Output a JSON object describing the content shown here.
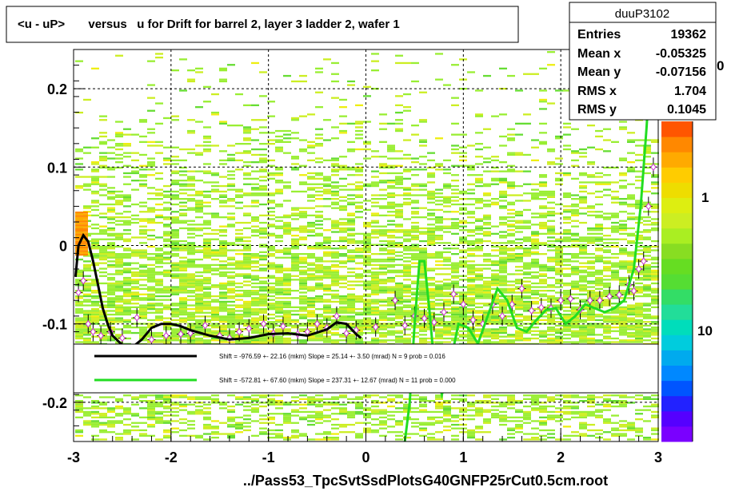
{
  "title": "<u - uP>       versus   u for Drift for barrel 2, layer 3 ladder 2, wafer 1",
  "footer": "../Pass53_TpcSvtSsdPlotsG40GNFP25rCut0.5cm.root",
  "stats": {
    "name": "duuP3102",
    "rows": [
      {
        "label": "Entries",
        "value": "19362"
      },
      {
        "label": "Mean x",
        "value": "-0.05325"
      },
      {
        "label": "Mean y",
        "value": "-0.07156"
      },
      {
        "label": "RMS x",
        "value": "1.704"
      },
      {
        "label": "RMS y",
        "value": "0.1045"
      }
    ]
  },
  "legend": {
    "entries": [
      {
        "color": "#000000",
        "text": "Shift =  -976.59 +- 22.16 (mkm) Slope =    25.14 +- 3.50 (mrad)  N = 9 prob = 0.016"
      },
      {
        "color": "#00dd00",
        "text": "Shift =  -572.81 +- 67.60 (mkm) Slope =   237.31 +- 12.67 (mrad)  N = 11 prob = 0.000"
      }
    ]
  },
  "colorbar": {
    "labels": [
      {
        "text": "10",
        "value": 10
      },
      {
        "text": "1",
        "value": 1
      },
      {
        "text": "0",
        "value": 0.1
      }
    ]
  },
  "chart_data": {
    "type": "heatmap",
    "xlim": [
      -3,
      3
    ],
    "ylim": [
      -0.25,
      0.25
    ],
    "xticks": [
      {
        "v": -3,
        "t": "-3"
      },
      {
        "v": -2,
        "t": "-2"
      },
      {
        "v": -1,
        "t": "-1"
      },
      {
        "v": 0,
        "t": "0"
      },
      {
        "v": 1,
        "t": "1"
      },
      {
        "v": 2,
        "t": "2"
      },
      {
        "v": 3,
        "t": "3"
      }
    ],
    "yticks": [
      {
        "v": -0.2,
        "t": "-0.2"
      },
      {
        "v": -0.1,
        "t": "-0.1"
      },
      {
        "v": 0,
        "t": "0"
      },
      {
        "v": 0.1,
        "t": "0.1"
      },
      {
        "v": 0.2,
        "t": "0.2"
      }
    ],
    "grid": true,
    "profile_points": [
      [
        -2.95,
        -0.06
      ],
      [
        -2.9,
        -0.045
      ],
      [
        -2.85,
        -0.1
      ],
      [
        -2.8,
        -0.11
      ],
      [
        -2.72,
        -0.115
      ],
      [
        -2.62,
        -0.11
      ],
      [
        -2.5,
        -0.118
      ],
      [
        -2.35,
        -0.092
      ],
      [
        -2.2,
        -0.12
      ],
      [
        -2.05,
        -0.115
      ],
      [
        -1.9,
        -0.113
      ],
      [
        -1.8,
        -0.112
      ],
      [
        -1.65,
        -0.102
      ],
      [
        -1.5,
        -0.115
      ],
      [
        -1.4,
        -0.118
      ],
      [
        -1.3,
        -0.11
      ],
      [
        -1.2,
        -0.106
      ],
      [
        -1.05,
        -0.1
      ],
      [
        -0.95,
        -0.112
      ],
      [
        -0.85,
        -0.103
      ],
      [
        -0.7,
        -0.113
      ],
      [
        -0.6,
        -0.11
      ],
      [
        -0.5,
        -0.1
      ],
      [
        -0.4,
        -0.105
      ],
      [
        -0.3,
        -0.09
      ],
      [
        -0.2,
        -0.112
      ],
      [
        -0.1,
        -0.108
      ],
      [
        0.1,
        -0.104
      ],
      [
        0.3,
        -0.07
      ],
      [
        0.4,
        -0.102
      ],
      [
        0.5,
        -0.09
      ],
      [
        0.6,
        -0.093
      ],
      [
        0.7,
        -0.098
      ],
      [
        0.8,
        -0.085
      ],
      [
        0.9,
        -0.062
      ],
      [
        1.0,
        -0.075
      ],
      [
        1.1,
        -0.095
      ],
      [
        1.2,
        -0.1
      ],
      [
        1.3,
        -0.075
      ],
      [
        1.4,
        -0.09
      ],
      [
        1.5,
        -0.075
      ],
      [
        1.6,
        -0.055
      ],
      [
        1.7,
        -0.083
      ],
      [
        1.8,
        -0.079
      ],
      [
        1.9,
        -0.08
      ],
      [
        2.0,
        -0.07
      ],
      [
        2.1,
        -0.068
      ],
      [
        2.2,
        -0.082
      ],
      [
        2.3,
        -0.07
      ],
      [
        2.4,
        -0.07
      ],
      [
        2.5,
        -0.065
      ],
      [
        2.6,
        -0.063
      ],
      [
        2.7,
        -0.05
      ],
      [
        2.75,
        -0.058
      ],
      [
        2.8,
        -0.03
      ],
      [
        2.85,
        -0.02
      ],
      [
        2.9,
        0.05
      ],
      [
        2.95,
        0.1
      ]
    ],
    "black_fit": [
      [
        -2.98,
        -0.04
      ],
      [
        -2.95,
        0.0
      ],
      [
        -2.9,
        0.013
      ],
      [
        -2.85,
        0.005
      ],
      [
        -2.8,
        -0.02
      ],
      [
        -2.75,
        -0.05
      ],
      [
        -2.7,
        -0.08
      ],
      [
        -2.65,
        -0.1
      ],
      [
        -2.6,
        -0.115
      ],
      [
        -2.5,
        -0.127
      ],
      [
        -2.4,
        -0.13
      ],
      [
        -2.3,
        -0.12
      ],
      [
        -2.2,
        -0.105
      ],
      [
        -2.1,
        -0.1
      ],
      [
        -2.0,
        -0.1
      ],
      [
        -1.9,
        -0.103
      ],
      [
        -1.8,
        -0.108
      ],
      [
        -1.6,
        -0.115
      ],
      [
        -1.4,
        -0.12
      ],
      [
        -1.2,
        -0.118
      ],
      [
        -1.0,
        -0.113
      ],
      [
        -0.8,
        -0.112
      ],
      [
        -0.6,
        -0.115
      ],
      [
        -0.4,
        -0.107
      ],
      [
        -0.3,
        -0.098
      ],
      [
        -0.2,
        -0.1
      ],
      [
        -0.1,
        -0.113
      ],
      [
        -0.05,
        -0.118
      ]
    ],
    "green_fit": [
      [
        0.4,
        -0.28
      ],
      [
        0.45,
        -0.2
      ],
      [
        0.5,
        -0.1
      ],
      [
        0.55,
        -0.02
      ],
      [
        0.6,
        -0.02
      ],
      [
        0.65,
        -0.08
      ],
      [
        0.7,
        -0.15
      ],
      [
        0.78,
        -0.19
      ],
      [
        0.85,
        -0.16
      ],
      [
        0.95,
        -0.1
      ],
      [
        1.05,
        -0.105
      ],
      [
        1.15,
        -0.125
      ],
      [
        1.25,
        -0.09
      ],
      [
        1.35,
        -0.055
      ],
      [
        1.45,
        -0.07
      ],
      [
        1.55,
        -0.105
      ],
      [
        1.65,
        -0.11
      ],
      [
        1.75,
        -0.095
      ],
      [
        1.85,
        -0.082
      ],
      [
        1.95,
        -0.08
      ],
      [
        2.05,
        -0.1
      ],
      [
        2.15,
        -0.09
      ],
      [
        2.25,
        -0.075
      ],
      [
        2.35,
        -0.08
      ],
      [
        2.45,
        -0.085
      ],
      [
        2.55,
        -0.08
      ],
      [
        2.65,
        -0.07
      ],
      [
        2.75,
        -0.03
      ],
      [
        2.82,
        0.05
      ],
      [
        2.88,
        0.15
      ],
      [
        2.93,
        0.26
      ]
    ]
  }
}
